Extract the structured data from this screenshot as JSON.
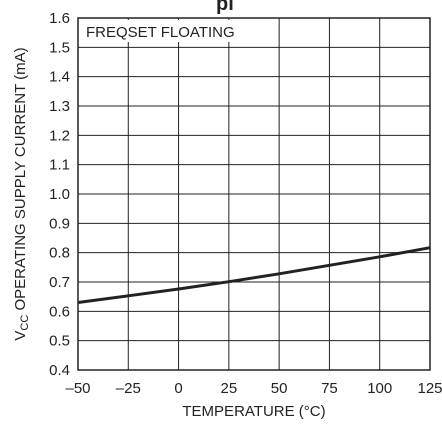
{
  "chart_data": {
    "type": "line",
    "title": "",
    "title_fragment": "pl",
    "annotation": "FREQSET FLOATING",
    "xlabel": "TEMPERATURE (°C)",
    "ylabel_prefix": "V",
    "ylabel_sub": "CC",
    "ylabel_rest": " OPERATING SUPPLY CURRENT (mA)",
    "xlim": [
      -50,
      125
    ],
    "ylim": [
      0.4,
      1.6
    ],
    "xticks": [
      "–50",
      "–25",
      "0",
      "25",
      "50",
      "75",
      "100",
      "125"
    ],
    "xtick_values": [
      -50,
      -25,
      0,
      25,
      50,
      75,
      100,
      125
    ],
    "yticks": [
      "0.4",
      "0.5",
      "0.6",
      "0.7",
      "0.8",
      "0.9",
      "1.0",
      "1.1",
      "1.2",
      "1.3",
      "1.4",
      "1.5",
      "1.6"
    ],
    "ytick_values": [
      0.4,
      0.5,
      0.6,
      0.7,
      0.8,
      0.9,
      1.0,
      1.1,
      1.2,
      1.3,
      1.4,
      1.5,
      1.6
    ],
    "grid": true,
    "series": [
      {
        "x": [
          -50,
          -25,
          0,
          25,
          50,
          75,
          100,
          125
        ],
        "y": [
          0.63,
          0.653,
          0.676,
          0.701,
          0.728,
          0.757,
          0.786,
          0.817
        ]
      }
    ],
    "line_color": "#222222"
  }
}
